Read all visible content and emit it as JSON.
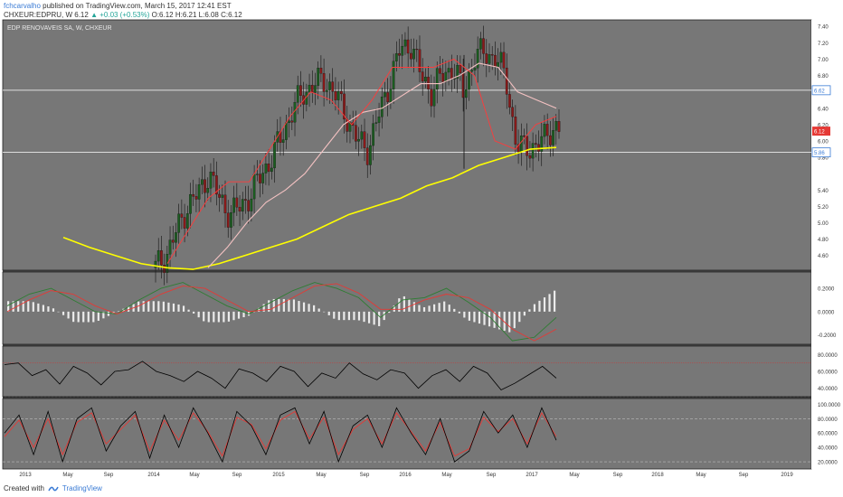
{
  "header": {
    "author": "fchcarvalho",
    "published_text": "published on TradingView.com, March 15, 2017 12:41 EST",
    "symbol": "CHXEUR:EDPRU, W",
    "last": "6.12",
    "change": "+0.03 (+0.53%)",
    "ohlc": "O:6.12 H:6.21 L:6.08 C:6.12"
  },
  "footer": {
    "created_with": "Created with",
    "brand": "TradingView"
  },
  "chart_data": {
    "type": "line",
    "title": "EDP RENOVAVEIS SA, W, CHXEUR",
    "colors": {
      "plot_background": "#777777",
      "up_candle": "#1b5e20",
      "down_candle": "#8b1a1a",
      "ma_fast": "#ff3b3b",
      "ma_mid": "#f4c2c2",
      "ma_slow": "#ffff00",
      "macd_line": "#2e7d32",
      "signal_line": "#e53935",
      "histogram": "#ffffff",
      "rsi_line": "#000000",
      "stoch_k": "#000000",
      "stoch_d": "#e53935",
      "last_price_badge": "#e53935",
      "level_badge": "#3a7bd5"
    },
    "x_ticks": [
      "2013",
      "May",
      "Sep",
      "2014",
      "May",
      "Sep",
      "2015",
      "May",
      "Sep",
      "2016",
      "May",
      "Sep",
      "2017",
      "May",
      "Sep",
      "2018",
      "May",
      "Sep",
      "2019"
    ],
    "price_pane": {
      "y_ticks": [
        "7.40",
        "7.20",
        "7.00",
        "6.80",
        "6.40",
        "6.20",
        "6.00",
        "5.80",
        "5.40",
        "5.20",
        "5.00",
        "4.80",
        "4.60"
      ],
      "ylim": [
        4.42,
        7.48
      ],
      "horizontal_levels": [
        6.62,
        5.86
      ],
      "level_labels": [
        "6.62",
        "5.86"
      ],
      "last_price": 6.12,
      "last_price_label": "6.12",
      "candles_weekly_approx": [
        {
          "t": "2014-01",
          "close": 4.45
        },
        {
          "t": "2014-02",
          "close": 4.6
        },
        {
          "t": "2014-03",
          "close": 4.9
        },
        {
          "t": "2014-04",
          "close": 5.2
        },
        {
          "t": "2014-05",
          "close": 5.35
        },
        {
          "t": "2014-06",
          "close": 5.6
        },
        {
          "t": "2014-07",
          "close": 5.3
        },
        {
          "t": "2014-08",
          "close": 5.1
        },
        {
          "t": "2014-09",
          "close": 5.2
        },
        {
          "t": "2014-10",
          "close": 5.35
        },
        {
          "t": "2014-11",
          "close": 5.6
        },
        {
          "t": "2014-12",
          "close": 5.8
        },
        {
          "t": "2015-01",
          "close": 6.1
        },
        {
          "t": "2015-02",
          "close": 6.4
        },
        {
          "t": "2015-03",
          "close": 6.6
        },
        {
          "t": "2015-04",
          "close": 6.7
        },
        {
          "t": "2015-05",
          "close": 6.75
        },
        {
          "t": "2015-06",
          "close": 6.55
        },
        {
          "t": "2015-07",
          "close": 6.3
        },
        {
          "t": "2015-08",
          "close": 6.0
        },
        {
          "t": "2015-09",
          "close": 5.9
        },
        {
          "t": "2015-10",
          "close": 6.3
        },
        {
          "t": "2015-11",
          "close": 6.7
        },
        {
          "t": "2015-12",
          "close": 7.1
        },
        {
          "t": "2016-01",
          "close": 7.2
        },
        {
          "t": "2016-02",
          "close": 6.8
        },
        {
          "t": "2016-03",
          "close": 6.6
        },
        {
          "t": "2016-04",
          "close": 6.8
        },
        {
          "t": "2016-05",
          "close": 6.9
        },
        {
          "t": "2016-06",
          "close": 6.6
        },
        {
          "t": "2016-07",
          "close": 7.0
        },
        {
          "t": "2016-08",
          "close": 7.1
        },
        {
          "t": "2016-09",
          "close": 7.0
        },
        {
          "t": "2016-10",
          "close": 6.8
        },
        {
          "t": "2016-11",
          "close": 5.9
        },
        {
          "t": "2016-12",
          "close": 5.95
        },
        {
          "t": "2017-01",
          "close": 5.9
        },
        {
          "t": "2017-02",
          "close": 6.15
        },
        {
          "t": "2017-03",
          "close": 6.12
        }
      ],
      "ma_slow_approx": [
        4.82,
        4.7,
        4.6,
        4.5,
        4.45,
        4.43,
        4.5,
        4.6,
        4.7,
        4.8,
        4.95,
        5.1,
        5.2,
        5.3,
        5.45,
        5.55,
        5.7,
        5.8,
        5.9,
        5.92
      ],
      "ma_mid_approx": [
        4.45,
        4.7,
        5.0,
        5.25,
        5.4,
        5.6,
        5.9,
        6.2,
        6.35,
        6.4,
        6.55,
        6.7,
        6.7,
        6.8,
        6.95,
        6.9,
        6.6,
        6.5,
        6.4
      ],
      "ma_fast_approx": [
        4.5,
        4.9,
        5.3,
        5.5,
        5.5,
        5.9,
        6.3,
        6.6,
        6.5,
        6.2,
        6.5,
        6.9,
        6.9,
        6.9,
        7.0,
        6.8,
        6.0,
        5.9,
        6.2,
        6.3
      ]
    },
    "macd_pane": {
      "y_ticks": [
        "0.2000",
        "0.0000",
        "-0.2000"
      ],
      "ylim": [
        -0.28,
        0.34
      ],
      "macd_approx": [
        0.05,
        0.15,
        0.2,
        0.1,
        0.0,
        -0.02,
        0.1,
        0.2,
        0.25,
        0.15,
        0.05,
        -0.02,
        0.08,
        0.18,
        0.25,
        0.2,
        0.12,
        -0.05,
        0.1,
        0.12,
        0.2,
        0.08,
        -0.05,
        -0.25,
        -0.22,
        -0.05
      ],
      "signal_approx": [
        0.0,
        0.1,
        0.18,
        0.15,
        0.05,
        -0.02,
        0.05,
        0.15,
        0.22,
        0.2,
        0.1,
        0.0,
        0.02,
        0.12,
        0.22,
        0.24,
        0.16,
        0.02,
        0.02,
        0.1,
        0.15,
        0.12,
        0.02,
        -0.15,
        -0.25,
        -0.15
      ]
    },
    "rsi_pane": {
      "y_ticks": [
        "80.0000",
        "60.0000",
        "40.0000"
      ],
      "ylim": [
        30,
        90
      ],
      "bands": [
        70,
        30
      ],
      "rsi_approx": [
        68,
        70,
        55,
        62,
        45,
        66,
        58,
        44,
        60,
        62,
        72,
        60,
        55,
        48,
        60,
        52,
        40,
        63,
        58,
        48,
        66,
        60,
        42,
        58,
        52,
        70,
        57,
        50,
        62,
        58,
        40,
        55,
        62,
        48,
        66,
        58,
        38,
        46,
        56,
        66,
        52
      ]
    },
    "stoch_pane": {
      "y_ticks": [
        "100.0000",
        "80.0000",
        "60.0000",
        "40.0000",
        "20.0000"
      ],
      "ylim": [
        10,
        108
      ],
      "bands": [
        80,
        20
      ],
      "k_approx": [
        60,
        85,
        30,
        90,
        20,
        80,
        95,
        35,
        70,
        90,
        25,
        85,
        40,
        95,
        60,
        20,
        90,
        70,
        30,
        85,
        95,
        45,
        90,
        20,
        70,
        85,
        40,
        95,
        60,
        30,
        80,
        20,
        35,
        90,
        60,
        85,
        40,
        95,
        50
      ],
      "d_approx": [
        55,
        78,
        40,
        80,
        30,
        75,
        88,
        45,
        65,
        85,
        35,
        78,
        50,
        88,
        62,
        28,
        82,
        72,
        38,
        78,
        90,
        52,
        82,
        30,
        65,
        80,
        45,
        88,
        62,
        35,
        75,
        28,
        38,
        82,
        62,
        80,
        45,
        88,
        55
      ]
    }
  }
}
